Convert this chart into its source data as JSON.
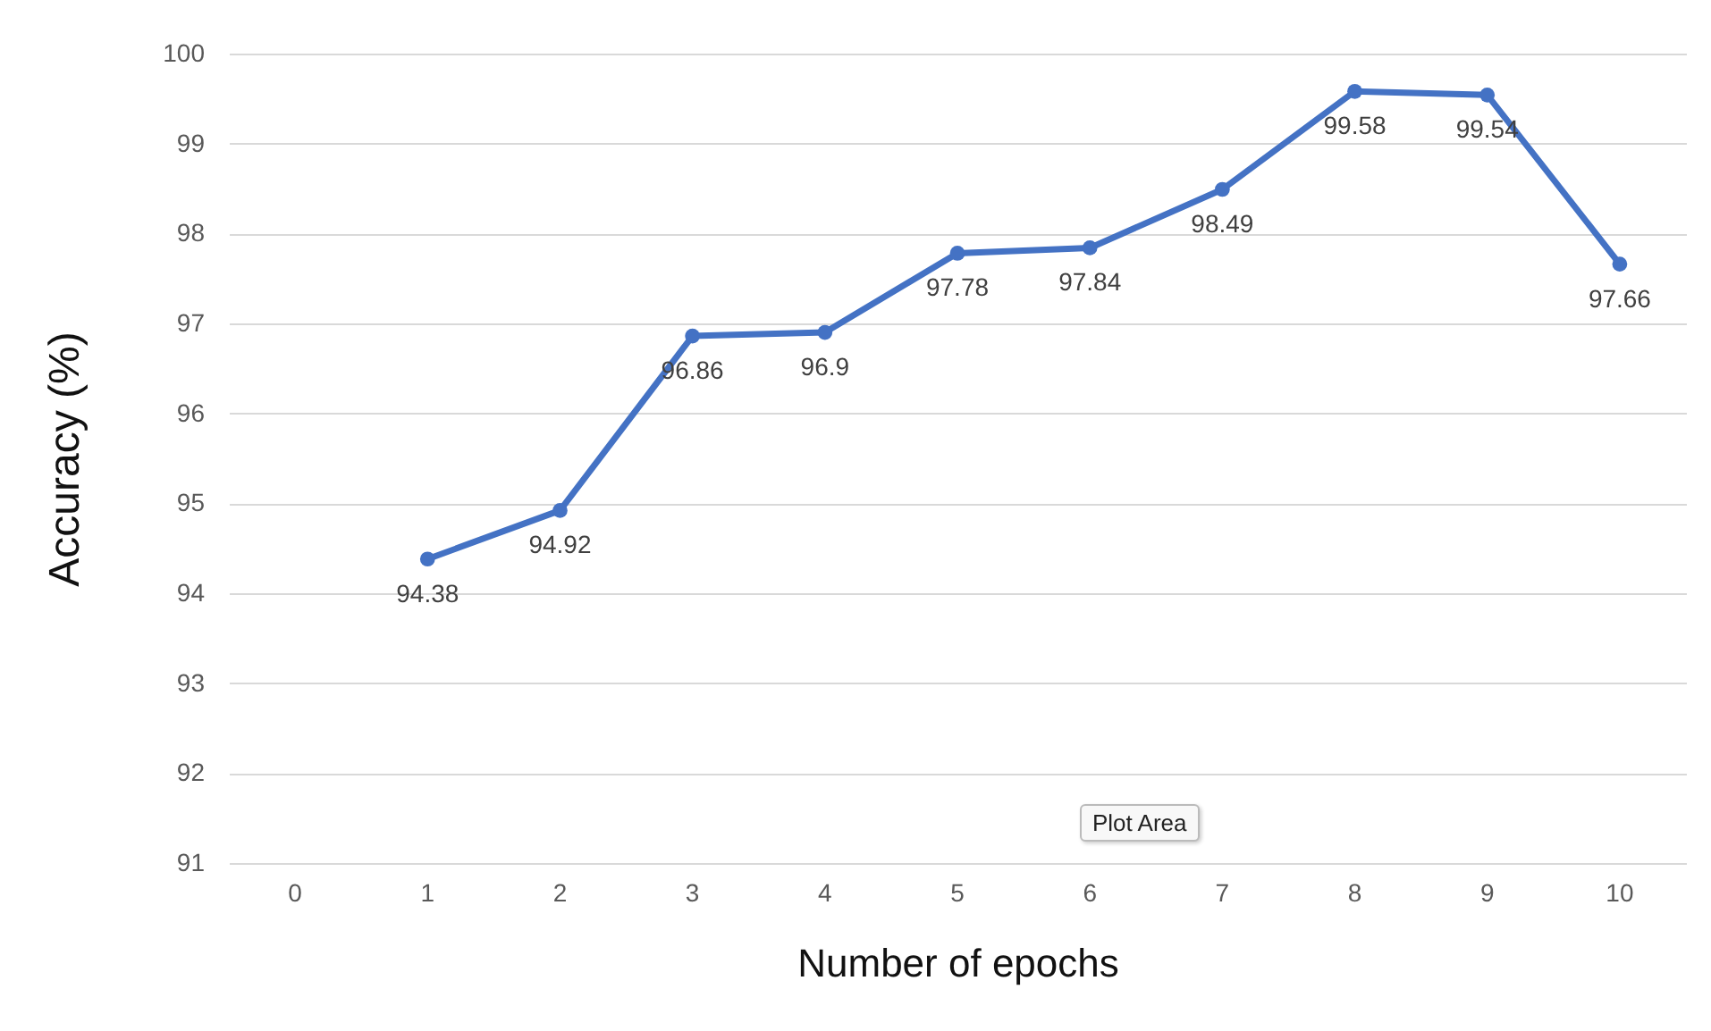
{
  "chart_data": {
    "type": "line",
    "xlabel": "Number of epochs",
    "ylabel": "Accuracy (%)",
    "categories": [
      "0",
      "1",
      "2",
      "3",
      "4",
      "5",
      "6",
      "7",
      "8",
      "9",
      "10"
    ],
    "values": [
      null,
      94.38,
      94.92,
      96.86,
      96.9,
      97.78,
      97.84,
      98.49,
      99.58,
      99.54,
      97.66
    ],
    "color": "#4472c4",
    "marker": "circle",
    "data_labels": true,
    "ylim": [
      91,
      100
    ],
    "yticks": [
      91,
      92,
      93,
      94,
      95,
      96,
      97,
      98,
      99,
      100
    ],
    "grid": "y",
    "annotations": [
      "Plot Area"
    ]
  }
}
